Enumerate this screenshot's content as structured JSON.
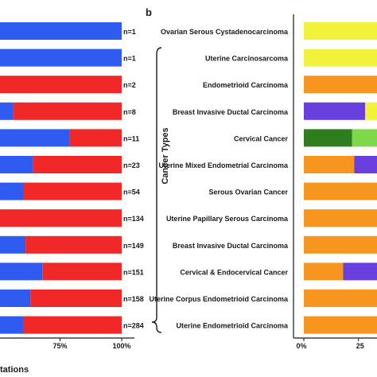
{
  "panel_b_label": "b",
  "colors": {
    "yellow": "#f2f23a",
    "blue": "#2f5bf0",
    "red": "#f02828",
    "orange": "#f7961e",
    "purple": "#6a3fe0",
    "green": "#2e7d1e",
    "lightgreen": "#7fd84a"
  },
  "chart_data": [
    {
      "type": "bar",
      "orientation": "horizontal",
      "stacked": true,
      "panel": "a",
      "xlabel": "tations",
      "tick_labels": [
        "75%",
        "100%"
      ],
      "xlim": [
        0,
        100
      ],
      "visible_from_percent": 34,
      "rows": [
        {
          "n_label": "n=1",
          "segments": [
            [
              "blue",
              100
            ]
          ]
        },
        {
          "n_label": "n=1",
          "segments": [
            [
              "blue",
              100
            ]
          ]
        },
        {
          "n_label": "n=2",
          "segments": [
            [
              "red",
              100
            ]
          ]
        },
        {
          "n_label": "n=8",
          "segments": [
            [
              "yellow",
              39
            ],
            [
              "blue",
              17
            ],
            [
              "red",
              44
            ]
          ]
        },
        {
          "n_label": "n=11",
          "segments": [
            [
              "yellow",
              48
            ],
            [
              "blue",
              31
            ],
            [
              "red",
              21
            ]
          ]
        },
        {
          "n_label": "n=23",
          "segments": [
            [
              "lightgreen",
              2
            ],
            [
              "yellow",
              32
            ],
            [
              "blue",
              30
            ],
            [
              "red",
              36
            ]
          ]
        },
        {
          "n_label": "n=54",
          "segments": [
            [
              "yellow",
              36
            ],
            [
              "blue",
              24
            ],
            [
              "red",
              40
            ]
          ]
        },
        {
          "n_label": "n=134",
          "segments": [
            [
              "yellow",
              35
            ],
            [
              "blue",
              14
            ],
            [
              "red",
              51
            ]
          ]
        },
        {
          "n_label": "n=149",
          "segments": [
            [
              "yellow",
              50
            ],
            [
              "blue",
              11
            ],
            [
              "red",
              39
            ]
          ]
        },
        {
          "n_label": "n=151",
          "segments": [
            [
              "yellow",
              47
            ],
            [
              "blue",
              21
            ],
            [
              "red",
              32
            ]
          ]
        },
        {
          "n_label": "n=158",
          "segments": [
            [
              "yellow",
              45
            ],
            [
              "blue",
              18
            ],
            [
              "red",
              37
            ]
          ]
        },
        {
          "n_label": "n=284",
          "segments": [
            [
              "yellow",
              41
            ],
            [
              "blue",
              19
            ],
            [
              "red",
              40
            ]
          ]
        }
      ]
    },
    {
      "type": "bar",
      "orientation": "horizontal",
      "stacked": true,
      "panel": "b",
      "ylabel": "Cancer Types",
      "tick_labels": [
        "0%",
        "25"
      ],
      "xlim": [
        0,
        100
      ],
      "visible_to_percent": 33,
      "rows": [
        {
          "label": "Ovarian Serous Cystadenocarcinoma",
          "segments": [
            [
              "yellow",
              100
            ]
          ]
        },
        {
          "label": "Uterine Carcinosarcoma",
          "segments": [
            [
              "yellow",
              100
            ]
          ]
        },
        {
          "label": "Endometrioid Carcinoma",
          "segments": [
            [
              "orange",
              100
            ]
          ]
        },
        {
          "label": "Breast Invasive Ductal Carcinoma",
          "segments": [
            [
              "purple",
              28
            ],
            [
              "yellow",
              72
            ]
          ]
        },
        {
          "label": "Cervical Cancer",
          "segments": [
            [
              "green",
              22
            ],
            [
              "lightgreen",
              78
            ]
          ]
        },
        {
          "label": "Uterine Mixed Endometrial Carcinoma",
          "segments": [
            [
              "orange",
              23
            ],
            [
              "purple",
              77
            ]
          ]
        },
        {
          "label": "Serous Ovarian Cancer",
          "segments": [
            [
              "orange",
              100
            ]
          ]
        },
        {
          "label": "Uterine Papillary Serous Carcinoma",
          "segments": [
            [
              "orange",
              100
            ]
          ]
        },
        {
          "label": "Breast Invasive Ductal Carcinoma",
          "segments": [
            [
              "orange",
              100
            ]
          ]
        },
        {
          "label": "Cervical & Endocervical Cancer",
          "segments": [
            [
              "orange",
              18
            ],
            [
              "purple",
              82
            ]
          ]
        },
        {
          "label": "Uterine Corpus Endometrioid Carcinoma",
          "segments": [
            [
              "orange",
              100
            ]
          ]
        },
        {
          "label": "Uterine Endometrioid Carcinoma",
          "segments": [
            [
              "orange",
              100
            ]
          ]
        }
      ]
    }
  ]
}
